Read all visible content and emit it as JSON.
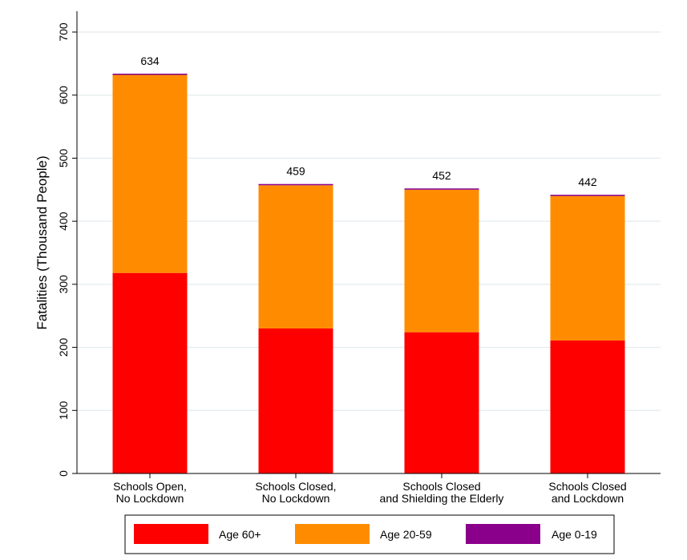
{
  "chart_data": {
    "type": "bar",
    "stacked": true,
    "ylabel": "Fatalities (Thousand People)",
    "xlabel": "",
    "ylim": [
      0,
      700
    ],
    "yticks": [
      "0",
      "100",
      "200",
      "300",
      "400",
      "500",
      "600",
      "700"
    ],
    "grid": true,
    "legend_position": "bottom",
    "categories": [
      [
        "Schools Open,",
        "No Lockdown"
      ],
      [
        "Schools Closed,",
        "No Lockdown"
      ],
      [
        "Schools Closed",
        "and Shielding the Elderly"
      ],
      [
        "Schools Closed",
        "and Lockdown"
      ]
    ],
    "series": [
      {
        "name": "Age 60+",
        "color": "#ff0000",
        "values": [
          318,
          230,
          224,
          211
        ]
      },
      {
        "name": "Age 20-59",
        "color": "#ff8c00",
        "values": [
          314,
          227,
          226,
          229
        ]
      },
      {
        "name": "Age 0-19",
        "color": "#8b008b",
        "values": [
          2,
          2,
          2,
          2
        ]
      }
    ],
    "totals": [
      "634",
      "459",
      "452",
      "442"
    ]
  }
}
